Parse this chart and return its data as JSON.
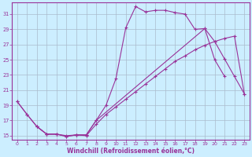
{
  "bg_color": "#cceeff",
  "line_color": "#993399",
  "grid_color": "#aabbcc",
  "xlabel": "Windchill (Refroidissement éolien,°C)",
  "xlim": [
    -0.5,
    23.5
  ],
  "ylim": [
    14.5,
    32.5
  ],
  "xticks": [
    0,
    1,
    2,
    3,
    4,
    5,
    6,
    7,
    8,
    9,
    10,
    11,
    12,
    13,
    14,
    15,
    16,
    17,
    18,
    19,
    20,
    21,
    22,
    23
  ],
  "yticks": [
    15,
    17,
    19,
    21,
    23,
    25,
    27,
    29,
    31
  ],
  "curve1_x": [
    0,
    1,
    2,
    3,
    4,
    5,
    6,
    7,
    8,
    9,
    10,
    11,
    12,
    13,
    14,
    15,
    16,
    17,
    18,
    19,
    20,
    21
  ],
  "curve1_y": [
    19.5,
    17.8,
    16.2,
    15.2,
    15.2,
    14.9,
    15.1,
    15.1,
    17.0,
    19.0,
    22.5,
    29.2,
    32.0,
    31.3,
    31.5,
    31.5,
    31.2,
    31.0,
    29.0,
    29.1,
    25.0,
    22.8
  ],
  "curve2_x": [
    0,
    1,
    2,
    3,
    4,
    5,
    6,
    7,
    8,
    19,
    20,
    21,
    22,
    23
  ],
  "curve2_y": [
    19.5,
    17.8,
    16.2,
    15.2,
    15.2,
    14.9,
    15.1,
    15.1,
    17.0,
    29.1,
    27.4,
    25.1,
    22.8,
    20.5
  ],
  "curve3_x": [
    2,
    3,
    4,
    5,
    6,
    7,
    8,
    9,
    10,
    11,
    12,
    13,
    14,
    15,
    16,
    17,
    18,
    19,
    20,
    21,
    22,
    23
  ],
  "curve3_y": [
    16.2,
    15.2,
    15.2,
    15.0,
    15.1,
    15.0,
    16.5,
    17.8,
    18.8,
    19.8,
    20.8,
    21.8,
    22.8,
    23.8,
    24.8,
    25.5,
    26.3,
    26.9,
    27.4,
    27.8,
    28.1,
    20.5
  ]
}
